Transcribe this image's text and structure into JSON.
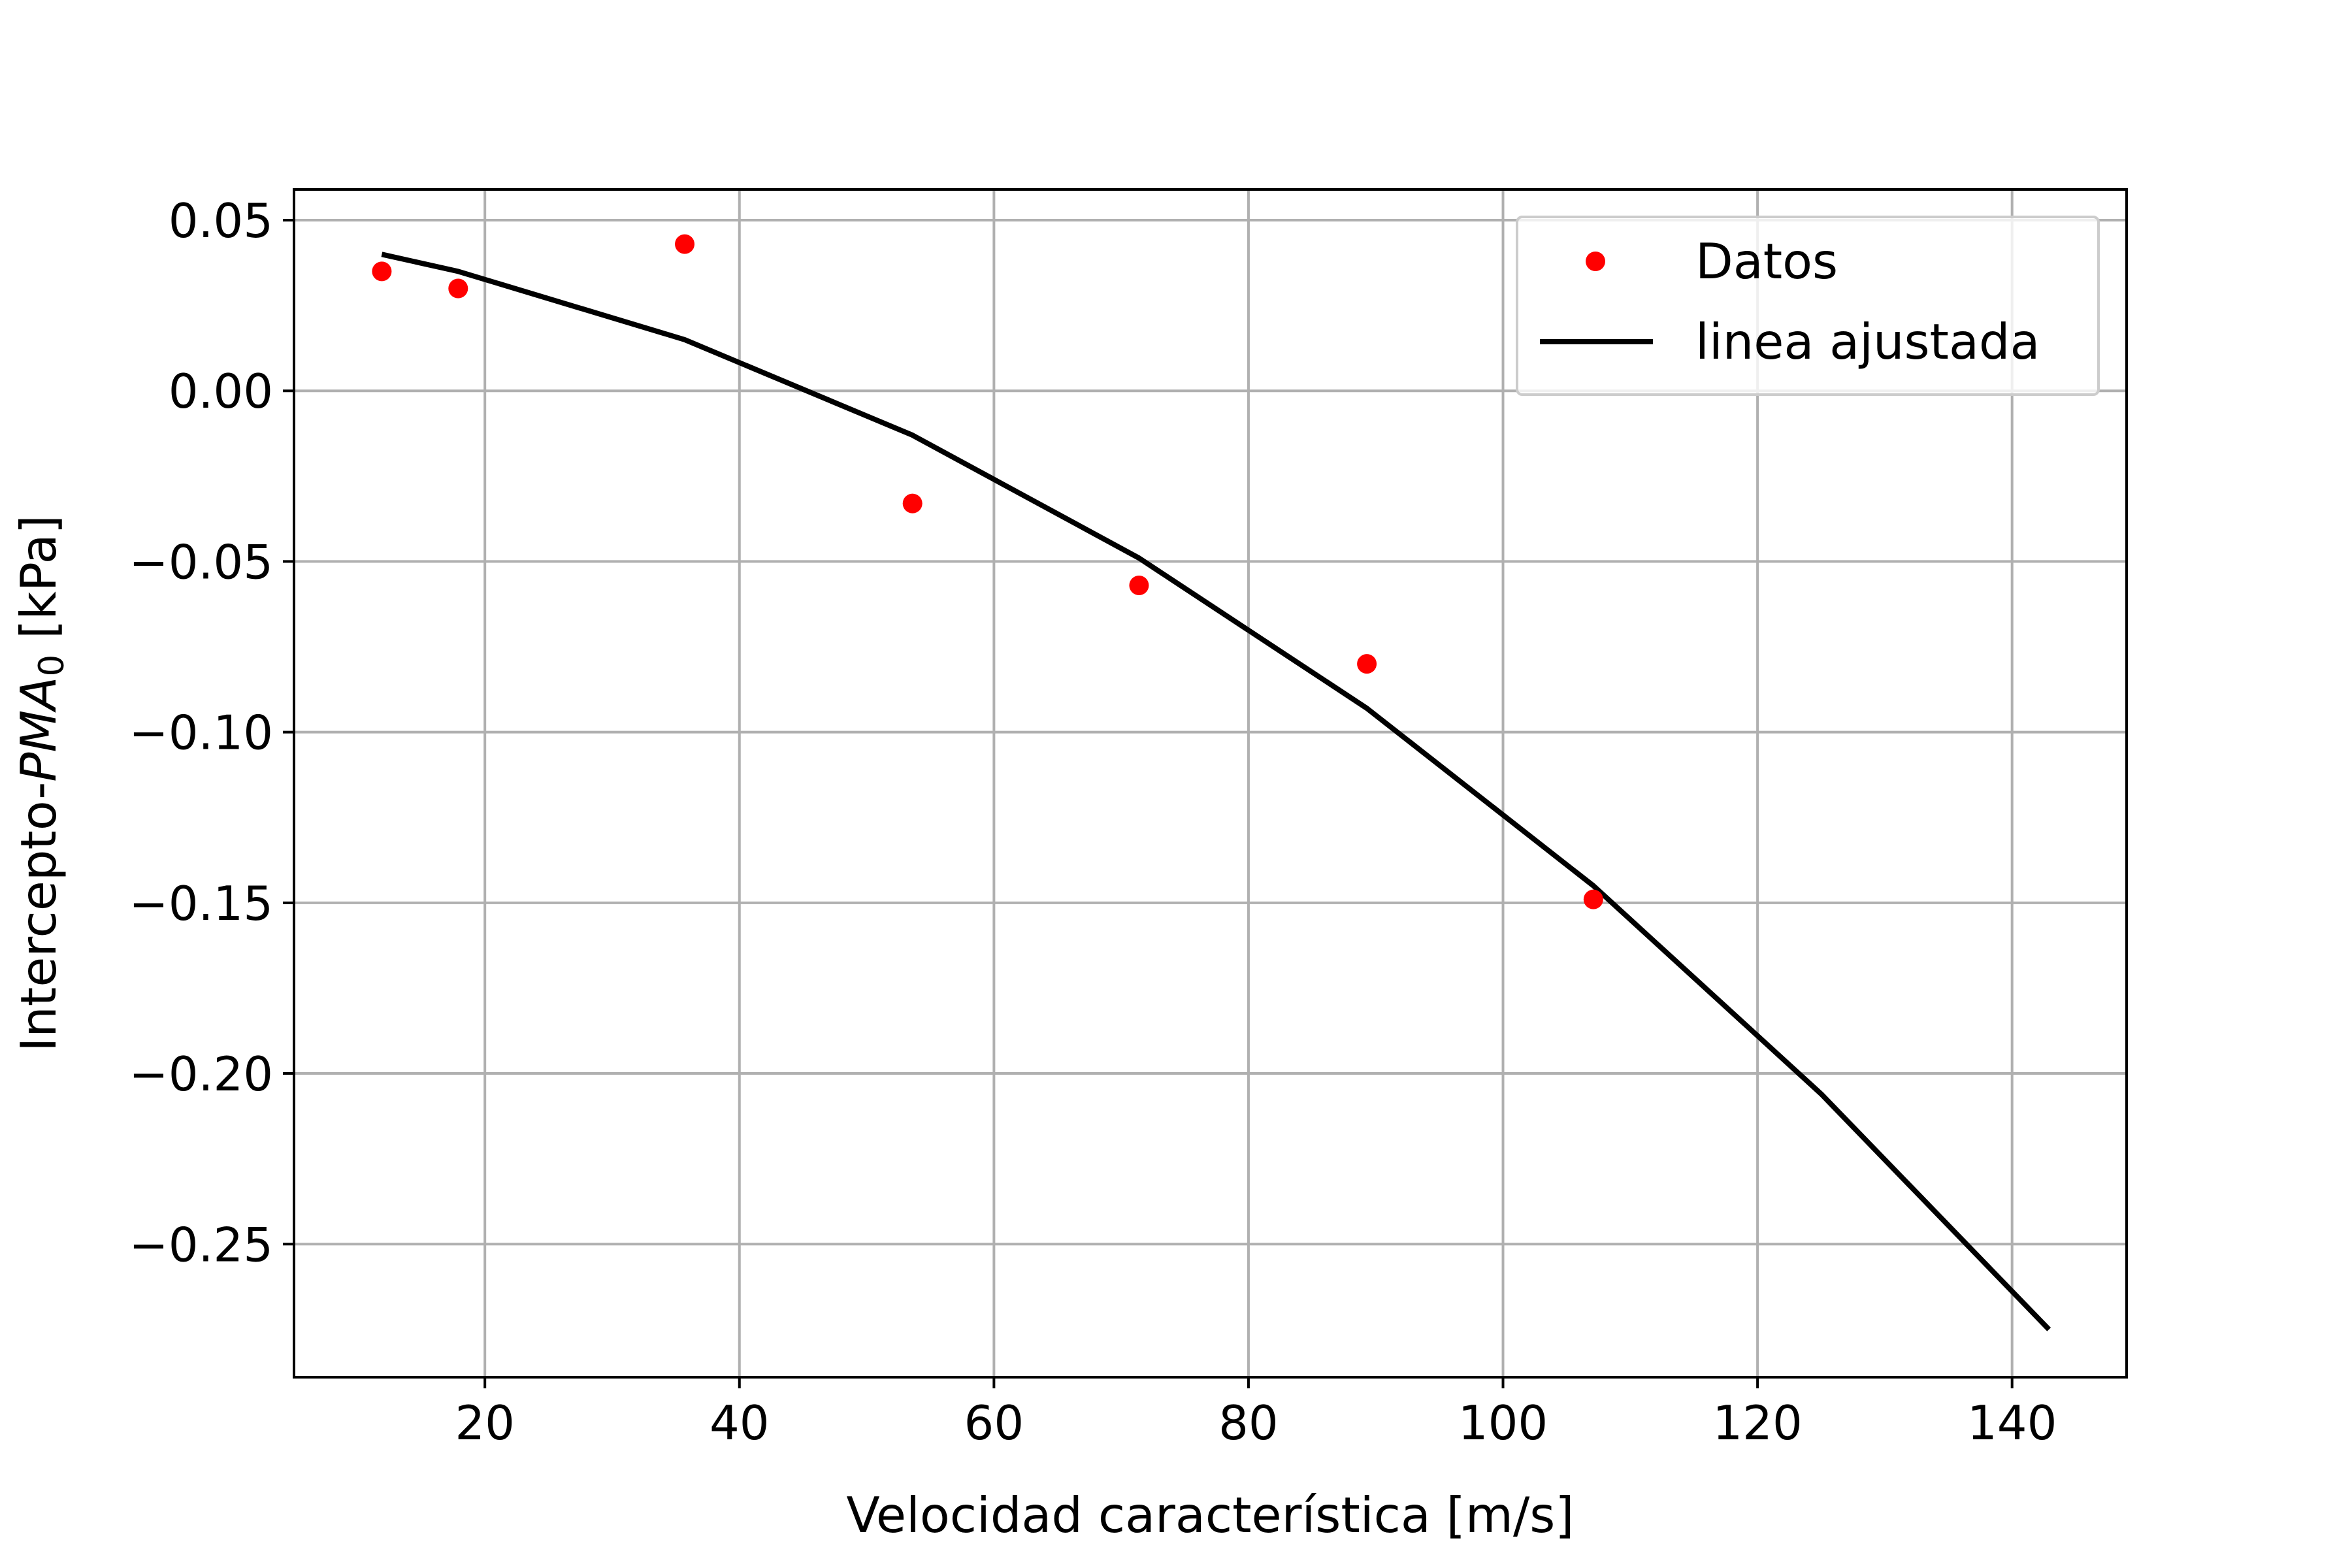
{
  "chart_data": {
    "type": "scatter",
    "title": "",
    "xlabel": "Velocidad característica [m/s]",
    "ylabel": {
      "prefix": "Intercepto-",
      "symbol": "PMA",
      "subscript": "0",
      "unit": " [kPa]"
    },
    "xlim": [
      5,
      149
    ],
    "ylim": [
      -0.289,
      0.059
    ],
    "x_ticks": [
      20,
      40,
      60,
      80,
      100,
      120,
      140
    ],
    "x_tick_labels": [
      "20",
      "40",
      "60",
      "80",
      "100",
      "120",
      "140"
    ],
    "y_ticks": [
      0.05,
      0.0,
      -0.05,
      -0.1,
      -0.15,
      -0.2,
      -0.25
    ],
    "y_tick_labels": [
      "0.05",
      "0.00",
      "−0.05",
      "−0.10",
      "−0.15",
      "−0.20",
      "−0.25"
    ],
    "grid": true,
    "legend_position": "top-right",
    "series": [
      {
        "name": "Datos",
        "kind": "scatter",
        "color": "#ff0000",
        "x": [
          11.9,
          17.9,
          35.7,
          53.6,
          71.4,
          89.3,
          107.1
        ],
        "y": [
          0.035,
          0.03,
          0.043,
          -0.033,
          -0.057,
          -0.08,
          -0.149
        ]
      },
      {
        "name": "linea ajustada",
        "kind": "line",
        "color": "#000000",
        "x": [
          11.9,
          17.9,
          35.7,
          53.6,
          71.4,
          89.3,
          107.1,
          125.0,
          142.9
        ],
        "y": [
          0.04,
          0.035,
          0.015,
          -0.013,
          -0.049,
          -0.093,
          -0.145,
          -0.206,
          -0.275
        ]
      }
    ]
  }
}
